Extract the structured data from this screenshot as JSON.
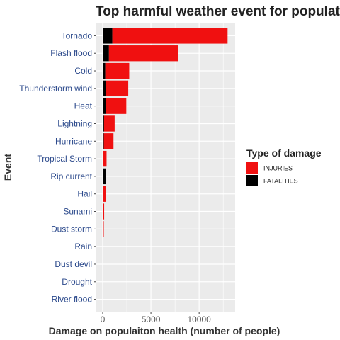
{
  "chart_data": {
    "type": "bar",
    "orientation": "horizontal",
    "stacked": true,
    "title": "Top harmful weather event for populat",
    "xlabel": "Damage on populaiton health (number of people)",
    "ylabel": "Event",
    "categories": [
      "Tornado",
      "Flash flood",
      "Cold",
      "Thunderstorm wind",
      "Heat",
      "Lightning",
      "Hurricane",
      "Tropical Storm",
      "Rip current",
      "Hail",
      "Sunami",
      "Dust storm",
      "Rain",
      "Dust devil",
      "Drought",
      "River flood"
    ],
    "series": [
      {
        "name": "INJURIES",
        "color": "#f01010",
        "values": [
          11950,
          7150,
          2480,
          2350,
          2100,
          1100,
          1000,
          340,
          0,
          280,
          130,
          90,
          60,
          20,
          10,
          0
        ]
      },
      {
        "name": "FATALITIES",
        "color": "#000000",
        "values": [
          1000,
          650,
          270,
          300,
          350,
          140,
          120,
          60,
          300,
          30,
          20,
          20,
          10,
          5,
          5,
          0
        ]
      }
    ],
    "xticks": [
      0,
      5000,
      10000
    ],
    "xtick_labels": [
      "0",
      "5000",
      "10000"
    ],
    "xlim": [
      -600,
      13700
    ],
    "grid": true,
    "panel_background": "#ebebeb",
    "legend": {
      "title": "Type of damage",
      "position": "right",
      "entries": [
        "INJURIES",
        "FATALITIES"
      ]
    }
  }
}
